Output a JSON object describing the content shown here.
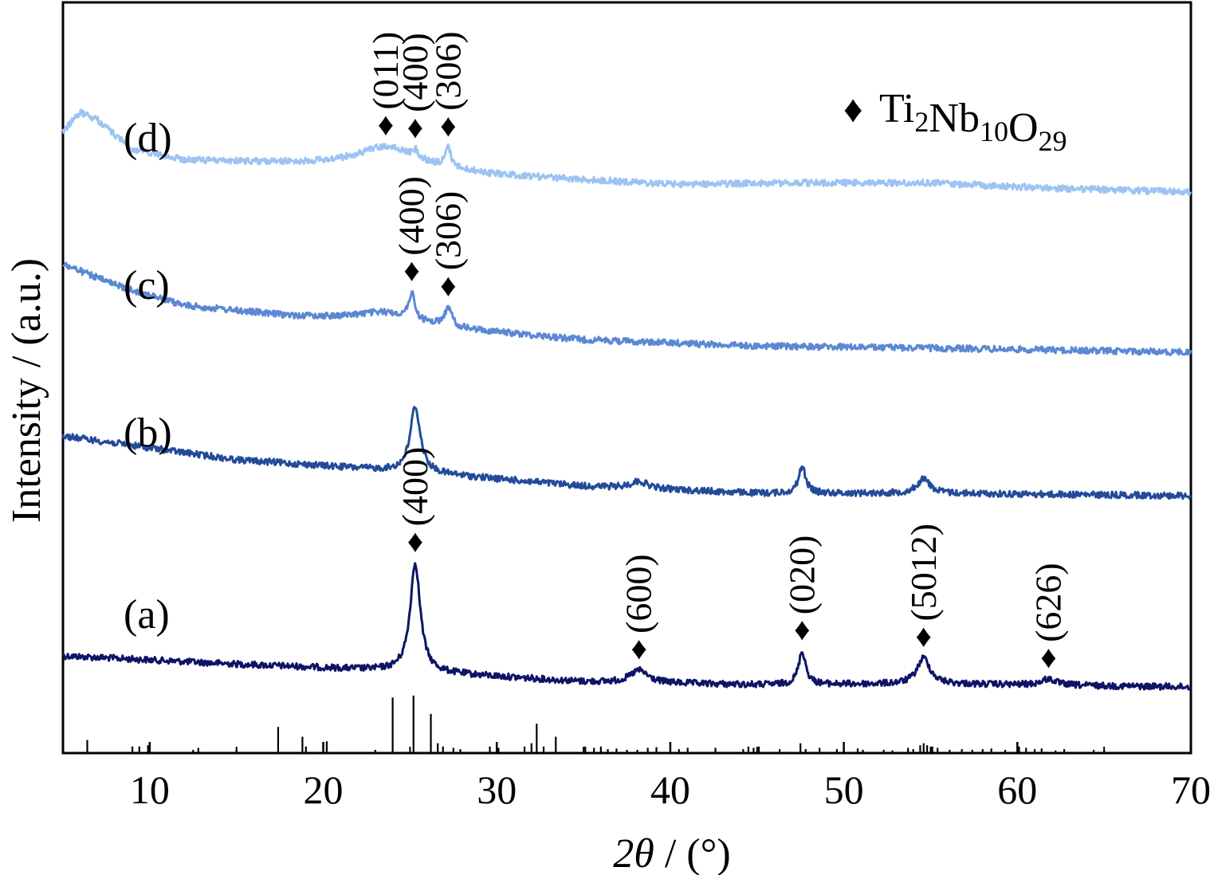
{
  "chart_data": {
    "type": "line",
    "xlabel": "2θ / (°)",
    "xlabel_parts": {
      "italic": "2θ",
      "rest": " / (°)"
    },
    "ylabel": "Intensity / (a.u.)",
    "xlim": [
      5,
      70
    ],
    "xticks": [
      10,
      20,
      30,
      40,
      50,
      60,
      70
    ],
    "grid": false,
    "legend": {
      "marker": "♦",
      "base": "Ti",
      "parts": [
        [
          "Ti",
          "2"
        ],
        [
          "Nb",
          "10"
        ],
        [
          "O",
          "29"
        ]
      ],
      "text": "Ti2Nb10O29",
      "placement": "top-right"
    },
    "colors": {
      "a": "#0d1466",
      "b": "#234b9a",
      "c": "#5b88d4",
      "d": "#9cc3f2"
    },
    "series": [
      {
        "name": "(a)",
        "color_key": "a",
        "baseline": [
          [
            5,
            0.3
          ],
          [
            15,
            0.22
          ],
          [
            25,
            0.15
          ],
          [
            35,
            0.05
          ],
          [
            45,
            0.02
          ],
          [
            55,
            0.03
          ],
          [
            70,
            0.0
          ]
        ],
        "peaks": [
          [
            25.3,
            1.05,
            0.35
          ],
          [
            38.2,
            0.12,
            0.6
          ],
          [
            47.6,
            0.32,
            0.25
          ],
          [
            54.6,
            0.25,
            0.45
          ],
          [
            61.8,
            0.06,
            0.5
          ]
        ],
        "annotations": [
          {
            "x": 25.3,
            "label": "(400)"
          },
          {
            "x": 38.2,
            "label": "(600)"
          },
          {
            "x": 47.6,
            "label": "(020)"
          },
          {
            "x": 54.6,
            "label": "(5012)",
            "overline": "top"
          },
          {
            "x": 61.8,
            "label": "(626)"
          }
        ]
      },
      {
        "name": "(b)",
        "color_key": "b",
        "baseline": [
          [
            5,
            0.5
          ],
          [
            15,
            0.3
          ],
          [
            25,
            0.2
          ],
          [
            35,
            0.08
          ],
          [
            45,
            0.02
          ],
          [
            55,
            0.02
          ],
          [
            70,
            0.0
          ]
        ],
        "peaks": [
          [
            25.3,
            0.55,
            0.35
          ],
          [
            38.2,
            0.06,
            0.6
          ],
          [
            47.6,
            0.22,
            0.25
          ],
          [
            54.6,
            0.12,
            0.45
          ]
        ],
        "annotations": []
      },
      {
        "name": "(c)",
        "color_key": "c",
        "baseline": [
          [
            5,
            0.85
          ],
          [
            8,
            0.65
          ],
          [
            12,
            0.45
          ],
          [
            18,
            0.35
          ],
          [
            24,
            0.3
          ],
          [
            28,
            0.22
          ],
          [
            35,
            0.12
          ],
          [
            45,
            0.06
          ],
          [
            55,
            0.04
          ],
          [
            70,
            0.0
          ]
        ],
        "peaks": [
          [
            25.1,
            0.25,
            0.2
          ],
          [
            27.2,
            0.18,
            0.25
          ],
          [
            23.5,
            0.08,
            2.0
          ]
        ],
        "annotations": [
          {
            "x": 25.1,
            "label": "(400)"
          },
          {
            "x": 27.2,
            "label": "(306)"
          }
        ]
      },
      {
        "name": "(d)",
        "color_key": "d",
        "baseline": [
          [
            5,
            0.8
          ],
          [
            6,
            1.05
          ],
          [
            7,
            0.95
          ],
          [
            9,
            0.55
          ],
          [
            12,
            0.42
          ],
          [
            18,
            0.38
          ],
          [
            24,
            0.35
          ],
          [
            30,
            0.22
          ],
          [
            40,
            0.1
          ],
          [
            48,
            0.12
          ],
          [
            55,
            0.12
          ],
          [
            62,
            0.05
          ],
          [
            70,
            0.0
          ]
        ],
        "peaks": [
          [
            23.6,
            0.25,
            2.0
          ],
          [
            25.3,
            0.1,
            0.2
          ],
          [
            27.2,
            0.25,
            0.2
          ]
        ],
        "annotations": [
          {
            "x": 23.6,
            "label": "(011)"
          },
          {
            "x": 25.3,
            "label": "(400)"
          },
          {
            "x": 27.2,
            "label": "(306)"
          }
        ]
      }
    ],
    "reference_pattern": [
      [
        6.4,
        0.2
      ],
      [
        9.0,
        0.1
      ],
      [
        9.4,
        0.1
      ],
      [
        9.9,
        0.12
      ],
      [
        12.5,
        0.05
      ],
      [
        12.8,
        0.08
      ],
      [
        15.0,
        0.05
      ],
      [
        17.4,
        0.4
      ],
      [
        18.8,
        0.25
      ],
      [
        19.0,
        0.1
      ],
      [
        20.2,
        0.18
      ],
      [
        23.0,
        0.05
      ],
      [
        24.0,
        0.85
      ],
      [
        25.2,
        0.88
      ],
      [
        26.2,
        0.6
      ],
      [
        26.6,
        0.15
      ],
      [
        26.9,
        0.1
      ],
      [
        27.5,
        0.08
      ],
      [
        27.9,
        0.06
      ],
      [
        29.6,
        0.1
      ],
      [
        30.1,
        0.08
      ],
      [
        31.6,
        0.1
      ],
      [
        32.0,
        0.15
      ],
      [
        32.3,
        0.45
      ],
      [
        32.7,
        0.1
      ],
      [
        33.4,
        0.25
      ],
      [
        35.1,
        0.1
      ],
      [
        35.6,
        0.08
      ],
      [
        36.0,
        0.1
      ],
      [
        36.4,
        0.06
      ],
      [
        36.9,
        0.07
      ],
      [
        37.5,
        0.05
      ],
      [
        38.1,
        0.05
      ],
      [
        38.7,
        0.08
      ],
      [
        39.2,
        0.09
      ],
      [
        40.5,
        0.06
      ],
      [
        41.0,
        0.08
      ],
      [
        42.6,
        0.08
      ],
      [
        44.2,
        0.06
      ],
      [
        44.5,
        0.1
      ],
      [
        44.8,
        0.08
      ],
      [
        45.1,
        0.1
      ],
      [
        46.3,
        0.06
      ],
      [
        47.5,
        0.15
      ],
      [
        47.8,
        0.06
      ],
      [
        48.6,
        0.08
      ],
      [
        49.6,
        0.06
      ],
      [
        50.8,
        0.07
      ],
      [
        51.1,
        0.05
      ],
      [
        52.3,
        0.05
      ],
      [
        52.8,
        0.04
      ],
      [
        53.7,
        0.08
      ],
      [
        54.0,
        0.06
      ],
      [
        54.4,
        0.12
      ],
      [
        54.6,
        0.15
      ],
      [
        54.8,
        0.12
      ],
      [
        55.1,
        0.1
      ],
      [
        55.4,
        0.08
      ],
      [
        56.1,
        0.05
      ],
      [
        56.8,
        0.06
      ],
      [
        57.4,
        0.05
      ],
      [
        58.0,
        0.06
      ],
      [
        58.5,
        0.07
      ],
      [
        59.3,
        0.05
      ],
      [
        60.1,
        0.1
      ],
      [
        60.5,
        0.08
      ],
      [
        61.0,
        0.06
      ],
      [
        61.4,
        0.07
      ],
      [
        62.2,
        0.04
      ],
      [
        62.7,
        0.06
      ],
      [
        64.4,
        0.05
      ],
      [
        65.0,
        0.04
      ]
    ]
  }
}
